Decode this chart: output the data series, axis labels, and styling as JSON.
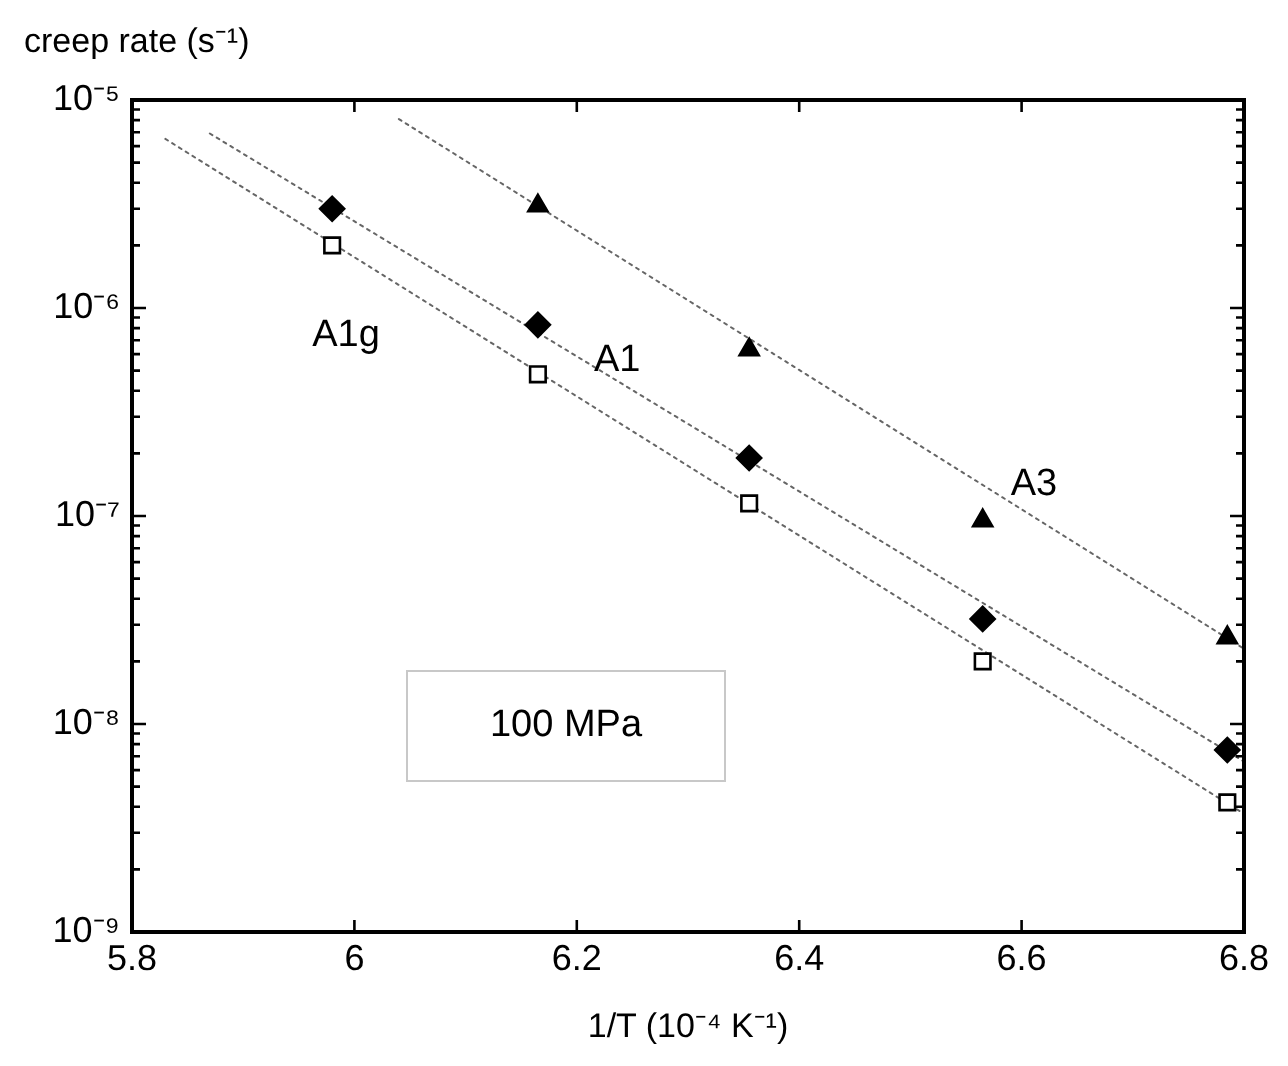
{
  "chart_data": {
    "type": "scatter",
    "ylabel": "creep rate (s⁻¹)",
    "xlabel": "1/T (10⁻⁴ K⁻¹)",
    "log": "y",
    "legend": false,
    "xlim": [
      5.8,
      6.8
    ],
    "xticks": [
      5.8,
      6,
      6.2,
      6.4,
      6.6,
      6.8
    ],
    "ylim": [
      1e-09,
      1e-05
    ],
    "yticks": [
      {
        "value": 1e-09,
        "label": "10⁻⁹"
      },
      {
        "value": 1e-08,
        "label": "10⁻⁸"
      },
      {
        "value": 1e-07,
        "label": "10⁻⁷"
      },
      {
        "value": 1e-06,
        "label": "10⁻⁶"
      },
      {
        "value": 1e-05,
        "label": "10⁻⁵"
      }
    ],
    "series": [
      {
        "name": "A1",
        "marker": "diamond",
        "color": "#000000",
        "x": [
          5.98,
          6.165,
          6.355,
          6.565,
          6.785
        ],
        "values": [
          3e-06,
          8.3e-07,
          1.9e-07,
          3.2e-08,
          7.5e-09
        ]
      },
      {
        "name": "A1g",
        "marker": "square",
        "color": "#000000",
        "x": [
          5.98,
          6.165,
          6.355,
          6.565,
          6.785
        ],
        "values": [
          2e-06,
          4.8e-07,
          1.15e-07,
          2e-08,
          4.2e-09
        ]
      },
      {
        "name": "A3",
        "marker": "triangle",
        "color": "#000000",
        "x": [
          6.165,
          6.355,
          6.565,
          6.785
        ],
        "values": [
          3.1e-06,
          6.3e-07,
          9.5e-08,
          2.6e-08
        ]
      },
      {
        "type": "line",
        "marker": "none",
        "line_style": "dotted",
        "color": "#666666",
        "x": [
          5.87,
          6.8
        ],
        "values": [
          6.9e-06,
          6.6e-09
        ]
      },
      {
        "type": "line",
        "marker": "none",
        "line_style": "dotted",
        "color": "#666666",
        "x": [
          5.83,
          6.8
        ],
        "values": [
          6.5e-06,
          3.7e-09
        ]
      },
      {
        "type": "line",
        "marker": "none",
        "line_style": "dotted",
        "color": "#666666",
        "x": [
          6.04,
          6.8
        ],
        "values": [
          8.1e-06,
          2.3e-08
        ]
      }
    ],
    "annotations": [
      "100 MPa"
    ]
  }
}
